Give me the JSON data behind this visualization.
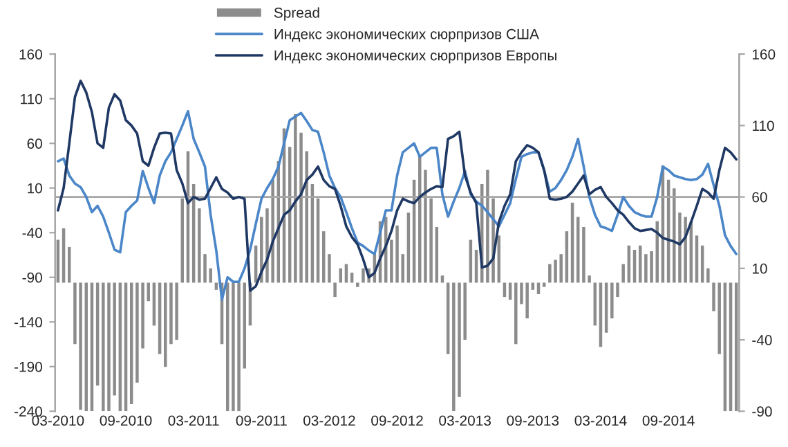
{
  "chart_data": {
    "type": "line",
    "categories": [
      "03-2010",
      null,
      null,
      null,
      null,
      null,
      null,
      null,
      null,
      null,
      null,
      null,
      "09-2010",
      null,
      null,
      null,
      null,
      null,
      null,
      null,
      null,
      null,
      null,
      null,
      "03-2011",
      null,
      null,
      null,
      null,
      null,
      null,
      null,
      null,
      null,
      null,
      null,
      "09-2011",
      null,
      null,
      null,
      null,
      null,
      null,
      null,
      null,
      null,
      null,
      null,
      "03-2012",
      null,
      null,
      null,
      null,
      null,
      null,
      null,
      null,
      null,
      null,
      null,
      "09-2012",
      null,
      null,
      null,
      null,
      null,
      null,
      null,
      null,
      null,
      null,
      null,
      "03-2013",
      null,
      null,
      null,
      null,
      null,
      null,
      null,
      null,
      null,
      null,
      null,
      "09-2013",
      null,
      null,
      null,
      null,
      null,
      null,
      null,
      null,
      null,
      null,
      null,
      "03-2014",
      null,
      null,
      null,
      null,
      null,
      null,
      null,
      null,
      null,
      null,
      null,
      "09-2014",
      null,
      null,
      null,
      null,
      null,
      null,
      null,
      null,
      null,
      null,
      null,
      null
    ],
    "series": [
      {
        "name": "Spread",
        "type": "bar",
        "axis": "y2",
        "color": "#8c8c8c",
        "values": [
          30,
          38,
          25,
          -43,
          -89,
          -90,
          -90,
          -72,
          -90,
          -90,
          -79,
          -90,
          -90,
          -85,
          -70,
          -46,
          -13,
          -30,
          -50,
          -59,
          -43,
          -40,
          59,
          92,
          69,
          52,
          20,
          10,
          -5,
          -43,
          -90,
          -90,
          -90,
          -60,
          -30,
          26,
          46,
          52,
          72,
          85,
          108,
          95,
          118,
          105,
          92,
          69,
          59,
          36,
          20,
          -10,
          10,
          13,
          7,
          -3,
          10,
          10,
          20,
          43,
          46,
          30,
          40,
          20,
          49,
          72,
          89,
          79,
          59,
          39,
          5,
          -50,
          -90,
          -80,
          -40,
          30,
          23,
          69,
          79,
          59,
          33,
          -10,
          -12,
          -43,
          -15,
          -25,
          -5,
          -8,
          -3,
          13,
          16,
          20,
          36,
          56,
          46,
          39,
          5,
          -30,
          -45,
          -35,
          -25,
          -10,
          13,
          26,
          23,
          26,
          20,
          22,
          43,
          82,
          72,
          66,
          49,
          46,
          43,
          33,
          26,
          10,
          -20,
          -50,
          -90,
          -90,
          -90
        ]
      },
      {
        "name": "Индекс экономических сюрпризов США",
        "axis": "y",
        "color": "#4a86c8",
        "values": [
          40,
          43,
          24,
          15,
          11,
          0,
          -17,
          -10,
          -22,
          -40,
          -59,
          -62,
          -17,
          -10,
          -4,
          29,
          10,
          -7,
          24,
          40,
          50,
          65,
          80,
          96,
          65,
          50,
          34,
          -20,
          -60,
          -115,
          -90,
          -95,
          -95,
          -80,
          -59,
          -30,
          -2,
          10,
          20,
          34,
          60,
          86,
          90,
          94,
          85,
          75,
          73,
          50,
          24,
          10,
          0,
          -17,
          -35,
          -51,
          -55,
          -60,
          -64,
          -40,
          -15,
          -15,
          24,
          50,
          55,
          60,
          45,
          50,
          55,
          55,
          3,
          -22,
          -5,
          10,
          29,
          3,
          -5,
          -10,
          -17,
          -25,
          -33,
          -20,
          -7,
          20,
          45,
          48,
          50,
          50,
          30,
          6,
          10,
          19,
          30,
          45,
          65,
          34,
          0,
          -20,
          -33,
          -35,
          -38,
          -20,
          0,
          -10,
          -17,
          -20,
          -22,
          -22,
          0,
          34,
          30,
          24,
          22,
          20,
          19,
          20,
          25,
          37,
          13,
          -10,
          -43,
          -55,
          -64
        ]
      },
      {
        "name": "Индекс экономических сюрпризов Европы",
        "axis": "y",
        "color": "#1f3864",
        "values": [
          -15,
          10,
          60,
          112,
          130,
          117,
          95,
          60,
          55,
          100,
          115,
          108,
          86,
          80,
          71,
          40,
          35,
          55,
          71,
          72,
          71,
          30,
          15,
          -7,
          0,
          -3,
          -2,
          10,
          22,
          9,
          5,
          -2,
          0,
          -2,
          -105,
          -100,
          -84,
          -70,
          -50,
          -35,
          -20,
          -15,
          -5,
          3,
          19,
          25,
          34,
          19,
          12,
          9,
          -10,
          -33,
          -45,
          -53,
          -70,
          -90,
          -85,
          -69,
          -55,
          -38,
          -15,
          -2,
          -5,
          -7,
          0,
          5,
          9,
          12,
          11,
          65,
          68,
          73,
          24,
          5,
          -7,
          -79,
          -77,
          -69,
          -28,
          -10,
          3,
          40,
          50,
          58,
          55,
          50,
          30,
          -2,
          -3,
          -2,
          0,
          6,
          15,
          24,
          3,
          8,
          11,
          0,
          -7,
          -15,
          -20,
          -28,
          -35,
          -38,
          -37,
          -36,
          -40,
          -46,
          -48,
          -50,
          -53,
          -45,
          -28,
          -10,
          9,
          5,
          -2,
          30,
          55,
          50,
          42
        ]
      }
    ],
    "ylim": [
      -240,
      160
    ],
    "yticks": [
      -240,
      -190,
      -140,
      -90,
      -40,
      10,
      60,
      110,
      160
    ],
    "y2lim": [
      -90,
      160
    ],
    "y2ticks": [
      -90,
      -40,
      10,
      60,
      110,
      160
    ],
    "ref_lines": [
      {
        "axis": "y",
        "value": 0,
        "color": "#a6a6a6"
      }
    ],
    "legend": "top",
    "grid": false
  }
}
